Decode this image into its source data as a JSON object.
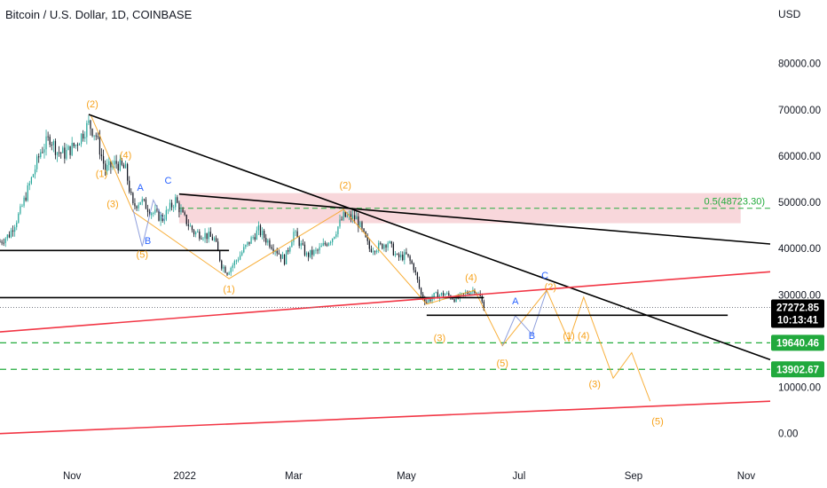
{
  "header": {
    "title": "Bitcoin / U.S. Dollar, 1D, COINBASE",
    "currency": "USD"
  },
  "colors": {
    "up": "#26a69a",
    "down": "#131722",
    "wave_orange": "#f7a21b",
    "wave_blue": "#2962ff",
    "support_red": "#f23645",
    "target_green": "#22ab3c",
    "zone_fill": "#f6c9cf",
    "trendline": "#000000",
    "last_price_bg": "#000000",
    "target_bg": "#21a93d"
  },
  "chart_data": {
    "type": "candlestick",
    "symbol": "Bitcoin / U.S. Dollar",
    "interval": "1D",
    "exchange": "COINBASE",
    "currency": "USD",
    "x": {
      "start": "2021-09-23",
      "end": "2022-11-14",
      "ticks": [
        "Nov",
        "2022",
        "Mar",
        "May",
        "Jul",
        "Sep",
        "Nov"
      ],
      "tick_dates": [
        "2021-11-01",
        "2022-01-01",
        "2022-03-01",
        "2022-05-01",
        "2022-07-01",
        "2022-09-01",
        "2022-11-01"
      ]
    },
    "y": {
      "min": -6000,
      "max": 88000,
      "ticks": [
        0,
        10000,
        20000,
        30000,
        40000,
        50000,
        60000,
        70000,
        80000
      ],
      "tick_labels": [
        "0.00",
        "10000.00",
        "20000.00",
        "30000.00",
        "40000.00",
        "50000.00",
        "60000.00",
        "70000.00",
        "80000.00"
      ]
    },
    "last_price": {
      "value": "27272.85",
      "countdown": "10:13:41",
      "y": 27272.85
    },
    "price_path": [
      [
        "2021-09-23",
        41500
      ],
      [
        "2021-09-28",
        43000
      ],
      [
        "2021-10-04",
        48000
      ],
      [
        "2021-10-10",
        55000
      ],
      [
        "2021-10-15",
        61000
      ],
      [
        "2021-10-20",
        64000
      ],
      [
        "2021-10-24",
        61000
      ],
      [
        "2021-10-28",
        60500
      ],
      [
        "2021-11-03",
        62500
      ],
      [
        "2021-11-10",
        67000
      ],
      [
        "2021-11-14",
        64500
      ],
      [
        "2021-11-19",
        57000
      ],
      [
        "2021-11-25",
        58500
      ],
      [
        "2021-11-30",
        57000
      ],
      [
        "2021-12-04",
        49000
      ],
      [
        "2021-12-08",
        50500
      ],
      [
        "2021-12-14",
        48000
      ],
      [
        "2021-12-20",
        46500
      ],
      [
        "2021-12-27",
        50500
      ],
      [
        "2021-12-31",
        47000
      ],
      [
        "2022-01-06",
        43500
      ],
      [
        "2022-01-12",
        43000
      ],
      [
        "2022-01-17",
        42000
      ],
      [
        "2022-01-21",
        36500
      ],
      [
        "2022-01-24",
        35000
      ],
      [
        "2022-01-29",
        37500
      ],
      [
        "2022-02-05",
        41500
      ],
      [
        "2022-02-10",
        44000
      ],
      [
        "2022-02-14",
        42000
      ],
      [
        "2022-02-19",
        40000
      ],
      [
        "2022-02-24",
        37500
      ],
      [
        "2022-03-01",
        43500
      ],
      [
        "2022-03-08",
        38500
      ],
      [
        "2022-03-14",
        39500
      ],
      [
        "2022-03-22",
        42500
      ],
      [
        "2022-03-28",
        47000
      ],
      [
        "2022-04-04",
        46500
      ],
      [
        "2022-04-11",
        40000
      ],
      [
        "2022-04-17",
        40500
      ],
      [
        "2022-04-21",
        41500
      ],
      [
        "2022-04-26",
        38000
      ],
      [
        "2022-05-01",
        38500
      ],
      [
        "2022-05-05",
        36000
      ],
      [
        "2022-05-09",
        30000
      ],
      [
        "2022-05-12",
        28500
      ],
      [
        "2022-05-16",
        29800
      ],
      [
        "2022-05-22",
        30200
      ],
      [
        "2022-05-28",
        29000
      ],
      [
        "2022-06-02",
        30300
      ],
      [
        "2022-06-07",
        31200
      ],
      [
        "2022-06-10",
        29500
      ],
      [
        "2022-06-12",
        27272
      ]
    ],
    "horizontal_lines": [
      {
        "name": "support-1",
        "y": 39600,
        "x1": "2021-09-23",
        "x2": "2022-01-25",
        "color": "black"
      },
      {
        "name": "support-2",
        "y": 29400,
        "x1": "2021-09-23",
        "x2": "2022-06-12",
        "color": "black"
      },
      {
        "name": "support-3",
        "y": 25600,
        "x1": "2022-05-12",
        "x2": "2022-10-22",
        "color": "black"
      }
    ],
    "trendlines": [
      {
        "name": "main-downtrend",
        "from": [
          "2021-11-10",
          69000
        ],
        "to": [
          "2022-11-14",
          16000
        ],
        "color": "black"
      },
      {
        "name": "upper-trendline",
        "from": [
          "2021-12-29",
          51800
        ],
        "to": [
          "2022-11-14",
          41000
        ],
        "color": "black"
      },
      {
        "name": "rising-support",
        "from": [
          "2021-09-23",
          22000
        ],
        "to": [
          "2022-11-14",
          35000
        ],
        "color": "red"
      },
      {
        "name": "long-support",
        "from": [
          "2021-09-23",
          0
        ],
        "to": [
          "2022-11-14",
          7000
        ],
        "color": "red"
      }
    ],
    "resistance_zone": {
      "x1": "2021-12-29",
      "x2": "2022-10-29",
      "y1": 45500,
      "y2": 52000
    },
    "fib_level": {
      "label": "0.5(48723.30)",
      "value": 48723.3,
      "x1": "2021-12-29",
      "x2": "2022-11-14"
    },
    "target_levels": [
      {
        "value": 19640.46,
        "label": "19640.46"
      },
      {
        "value": 13902.67,
        "label": "13902.67"
      }
    ],
    "projection_orange": [
      [
        "2021-11-11",
        69000
      ],
      [
        "2021-12-04",
        48000
      ],
      [
        "2022-01-25",
        33500
      ],
      [
        "2022-03-28",
        48500
      ],
      [
        "2022-05-12",
        28000
      ],
      [
        "2022-06-07",
        31000
      ],
      [
        "2022-06-22",
        19000
      ],
      [
        "2022-07-16",
        31000
      ],
      [
        "2022-07-28",
        20000
      ],
      [
        "2022-08-05",
        29500
      ],
      [
        "2022-08-21",
        12000
      ],
      [
        "2022-08-31",
        17500
      ],
      [
        "2022-09-10",
        7000
      ]
    ],
    "projection_blue": [
      [
        "2021-12-04",
        48500
      ],
      [
        "2021-12-09",
        40500
      ],
      [
        "2021-12-15",
        50500
      ],
      [
        "2021-12-21",
        46000
      ]
    ],
    "projection_blue_2": [
      [
        "2022-06-22",
        19000
      ],
      [
        "2022-06-29",
        25500
      ],
      [
        "2022-07-08",
        21500
      ],
      [
        "2022-07-16",
        31000
      ]
    ],
    "wave_labels": [
      {
        "text": "(2)",
        "x": "2021-11-12",
        "y": 70500,
        "color": "orange"
      },
      {
        "text": "(4)",
        "x": "2021-11-30",
        "y": 59500,
        "color": "orange"
      },
      {
        "text": "(1)",
        "x": "2021-11-17",
        "y": 55500,
        "color": "orange"
      },
      {
        "text": "(3)",
        "x": "2021-11-23",
        "y": 49000,
        "color": "orange"
      },
      {
        "text": "A",
        "x": "2021-12-08",
        "y": 52500,
        "color": "blue"
      },
      {
        "text": "C",
        "x": "2021-12-23",
        "y": 54000,
        "color": "blue"
      },
      {
        "text": "B",
        "x": "2021-12-12",
        "y": 41000,
        "color": "blue"
      },
      {
        "text": "(5)",
        "x": "2021-12-09",
        "y": 38000,
        "color": "orange"
      },
      {
        "text": "(1)",
        "x": "2022-01-25",
        "y": 30500,
        "color": "orange"
      },
      {
        "text": "(2)",
        "x": "2022-03-29",
        "y": 53000,
        "color": "orange"
      },
      {
        "text": "(4)",
        "x": "2022-06-05",
        "y": 33000,
        "color": "orange"
      },
      {
        "text": "(3)",
        "x": "2022-05-19",
        "y": 20000,
        "color": "orange"
      },
      {
        "text": "(5)",
        "x": "2022-06-22",
        "y": 14500,
        "color": "orange"
      },
      {
        "text": "A",
        "x": "2022-06-29",
        "y": 28000,
        "color": "blue"
      },
      {
        "text": "B",
        "x": "2022-07-08",
        "y": 20500,
        "color": "blue"
      },
      {
        "text": "C",
        "x": "2022-07-15",
        "y": 33500,
        "color": "blue"
      },
      {
        "text": "(2)",
        "x": "2022-07-18",
        "y": 31000,
        "color": "orange"
      },
      {
        "text": "(1)",
        "x": "2022-07-28",
        "y": 20500,
        "color": "orange"
      },
      {
        "text": "(4)",
        "x": "2022-08-05",
        "y": 20500,
        "color": "orange"
      },
      {
        "text": "(3)",
        "x": "2022-08-11",
        "y": 10000,
        "color": "orange"
      },
      {
        "text": "(5)",
        "x": "2022-09-14",
        "y": 2000,
        "color": "orange"
      }
    ]
  }
}
